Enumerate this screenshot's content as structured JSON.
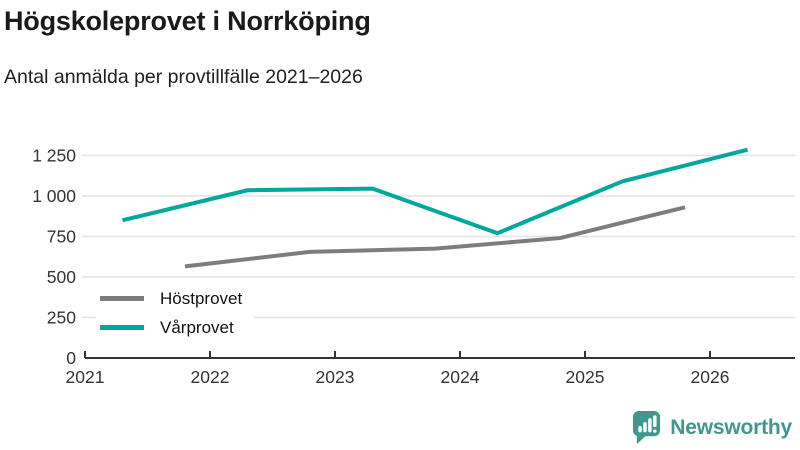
{
  "header": {
    "title": "Högskoleprovet i Norrköping",
    "subtitle": "Antal anmälda per provtillfälle 2021–2026"
  },
  "chart_data": {
    "type": "line",
    "title": "Högskoleprovet i Norrköping",
    "subtitle": "Antal anmälda per provtillfälle 2021–2026",
    "x_ticks": [
      2021,
      2022,
      2023,
      2024,
      2025,
      2026
    ],
    "x_range": [
      2021,
      2026.68
    ],
    "y_ticks": [
      0,
      250,
      500,
      750,
      1000,
      1250
    ],
    "y_range": [
      0,
      1345
    ],
    "grid": true,
    "legend_position": "inside-bottom-left",
    "series": [
      {
        "name": "Höstprovet",
        "color": "#7d7d7d",
        "x": [
          2021.8,
          2022.8,
          2023.8,
          2024.8,
          2025.8
        ],
        "values": [
          565,
          655,
          675,
          740,
          930
        ]
      },
      {
        "name": "Vårprovet",
        "color": "#00a79d",
        "x": [
          2021.3,
          2022.3,
          2023.3,
          2024.3,
          2025.3,
          2026.3
        ],
        "values": [
          850,
          1035,
          1045,
          770,
          1090,
          1285
        ]
      }
    ],
    "colors": {
      "grid": "#e4e4e4",
      "axis": "#333333",
      "tick_text": "#333333"
    }
  },
  "footer": {
    "brand": "Newsworthy",
    "brand_color": "#3f978e",
    "logo_icon": "bar-chart-speech-bubble"
  }
}
